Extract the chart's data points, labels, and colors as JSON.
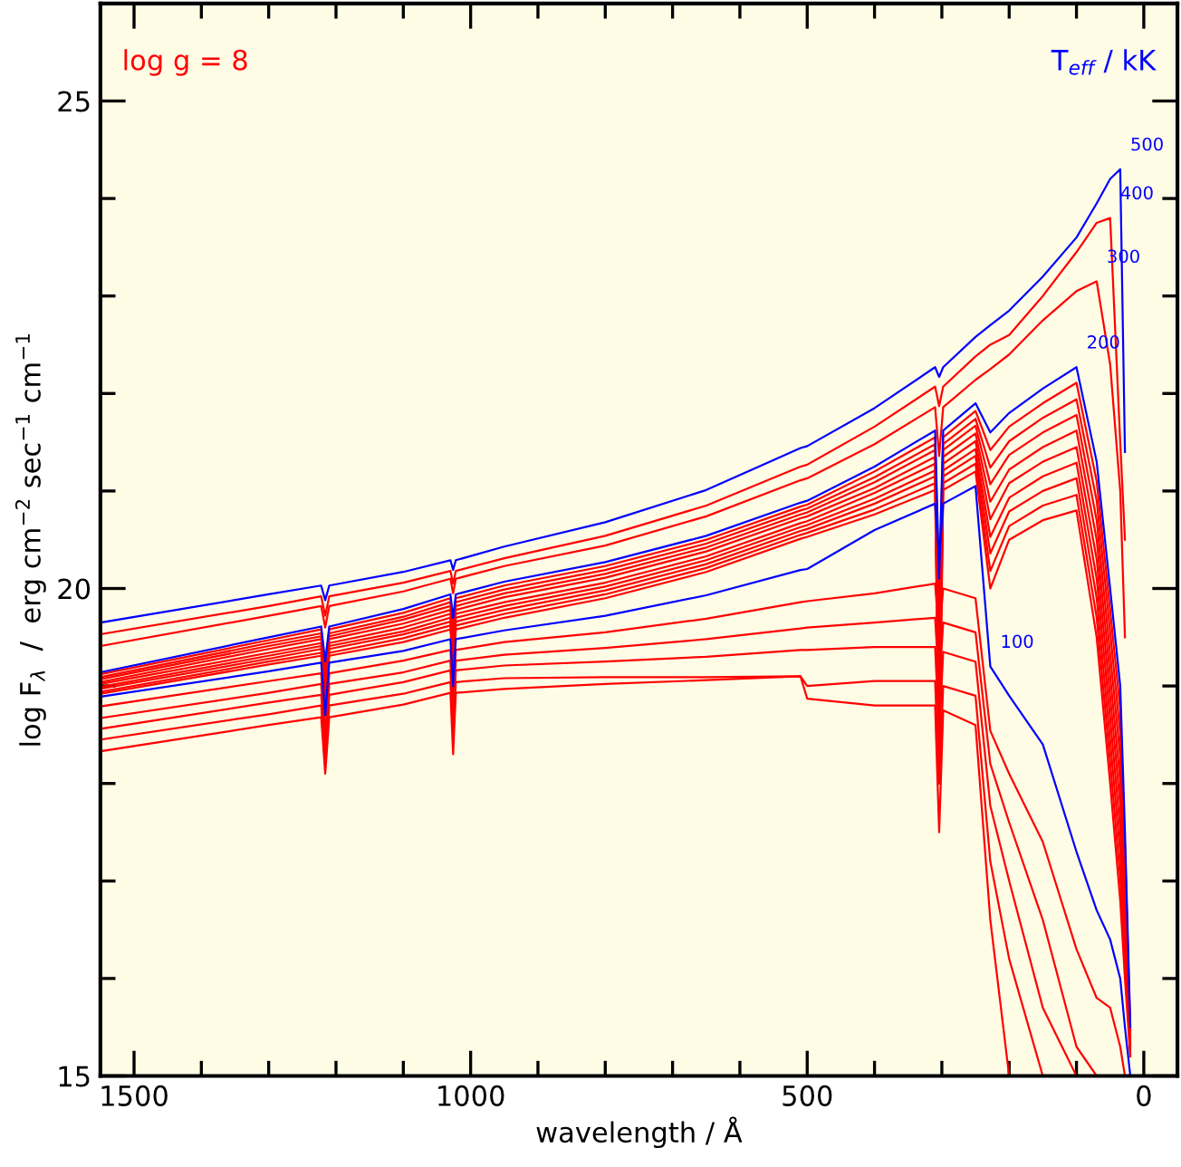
{
  "chart_data": {
    "type": "line",
    "xlabel": "wavelength / Å",
    "ylabel": "log F$_{λ}$  /  erg cm$^{−2}$ sec$^{−1}$ cm$^{−1}$",
    "annotations": [
      "log g = 8",
      "T$_{eff}$ / kK",
      {
        "text": "500",
        "x": 35,
        "y": 24.3
      },
      {
        "text": "400",
        "x": 50,
        "y": 23.8
      },
      {
        "text": "300",
        "x": 70,
        "y": 23.15
      },
      {
        "text": "200",
        "x": 100,
        "y": 22.27
      },
      {
        "text": "100",
        "x": 228,
        "y": 19.2
      }
    ],
    "xlim": [
      1550,
      -50
    ],
    "ylim": [
      15,
      26
    ],
    "xticks": [
      1500,
      {
        "value": 1400,
        "label": null
      },
      {
        "value": 1300,
        "label": null
      },
      {
        "value": 1200,
        "label": null
      },
      {
        "value": 1100,
        "label": null
      },
      1000,
      {
        "value": 900,
        "label": null
      },
      {
        "value": 800,
        "label": null
      },
      {
        "value": 700,
        "label": null
      },
      {
        "value": 600,
        "label": null
      },
      500,
      {
        "value": 400,
        "label": null
      },
      {
        "value": 300,
        "label": null
      },
      {
        "value": 200,
        "label": null
      },
      {
        "value": 100,
        "label": null
      },
      0
    ],
    "yticks": [
      15,
      {
        "value": 16,
        "label": null
      },
      {
        "value": 17,
        "label": null
      },
      {
        "value": 18,
        "label": null
      },
      {
        "value": 19,
        "label": null
      },
      20,
      {
        "value": 21,
        "label": null
      },
      {
        "value": 22,
        "label": null
      },
      {
        "value": 23,
        "label": null
      },
      {
        "value": 24,
        "label": null
      },
      25,
      {
        "value": 26,
        "label": null
      }
    ],
    "line_style": "solid",
    "marker": "none",
    "x": [
      1550,
      1300,
      1222,
      1216,
      1210,
      1100,
      1030,
      1026,
      1022,
      950,
      800,
      650,
      510,
      500,
      400,
      310,
      304,
      298,
      250,
      228,
      200,
      150,
      100,
      70,
      50,
      35,
      28,
      20
    ],
    "series": [
      {
        "color": "#ff0000",
        "values": [
          18.33,
          18.6,
          18.68,
          18.1,
          18.68,
          18.81,
          18.93,
          18.3,
          18.93,
          18.97,
          19.02,
          19.06,
          19.1,
          18.87,
          18.8,
          18.8,
          17.5,
          18.75,
          18.6,
          16.6,
          15.0,
          null,
          null,
          null,
          null,
          null,
          null,
          null
        ]
      },
      {
        "color": "#ff0000",
        "values": [
          18.45,
          18.71,
          18.8,
          18.2,
          18.8,
          18.92,
          19.04,
          18.5,
          19.04,
          19.08,
          19.09,
          19.09,
          19.1,
          19.0,
          19.05,
          19.05,
          18.0,
          19.0,
          18.9,
          17.2,
          16.2,
          15.0,
          null,
          null,
          null,
          null,
          null,
          null
        ]
      },
      {
        "color": "#ff0000",
        "values": [
          18.56,
          18.83,
          18.91,
          18.3,
          18.91,
          19.04,
          19.16,
          18.6,
          19.16,
          19.21,
          19.25,
          19.3,
          19.37,
          19.37,
          19.4,
          19.4,
          18.5,
          19.35,
          19.25,
          17.77,
          17.0,
          15.7,
          15.0,
          null,
          null,
          null,
          null,
          null
        ]
      },
      {
        "color": "#ff0000",
        "values": [
          18.67,
          18.93,
          19.02,
          18.4,
          19.02,
          19.14,
          19.26,
          18.7,
          19.26,
          19.32,
          19.39,
          19.48,
          19.59,
          19.6,
          19.65,
          19.7,
          19.0,
          19.65,
          19.55,
          18.2,
          17.6,
          16.6,
          15.3,
          15.0,
          null,
          null,
          null,
          null
        ]
      },
      {
        "color": "#ff0000",
        "values": [
          18.79,
          19.05,
          19.13,
          18.5,
          19.13,
          19.26,
          19.37,
          18.85,
          19.37,
          19.45,
          19.55,
          19.69,
          19.86,
          19.87,
          19.95,
          20.05,
          19.5,
          20.0,
          19.9,
          18.54,
          18.1,
          17.4,
          16.3,
          15.8,
          15.7,
          15.3,
          15.0,
          null
        ]
      },
      {
        "color": "#ff0000",
        "values": [
          18.92,
          19.22,
          19.31,
          18.8,
          19.31,
          19.45,
          19.58,
          19.2,
          19.58,
          19.7,
          19.9,
          20.17,
          20.51,
          20.53,
          20.76,
          21.01,
          18.0,
          21.01,
          21.2,
          20.0,
          20.5,
          20.7,
          20.8,
          19.5,
          18.0,
          16.8,
          16.0,
          15.2
        ]
      },
      {
        "color": "#ff0000",
        "values": [
          18.94,
          19.25,
          19.34,
          18.85,
          19.34,
          19.49,
          19.62,
          19.26,
          19.62,
          19.74,
          19.94,
          20.21,
          20.55,
          20.57,
          20.81,
          21.08,
          18.23,
          21.08,
          21.28,
          20.18,
          20.64,
          20.85,
          20.96,
          19.7,
          18.22,
          17.04,
          16.17,
          15.23
        ]
      },
      {
        "color": "#ff0000",
        "values": [
          18.97,
          19.28,
          19.38,
          18.9,
          19.38,
          19.53,
          19.66,
          19.31,
          19.66,
          19.78,
          19.98,
          20.25,
          20.59,
          20.61,
          20.87,
          21.15,
          18.47,
          21.15,
          21.36,
          20.36,
          20.79,
          21.0,
          21.13,
          19.9,
          18.44,
          17.29,
          16.33,
          15.27
        ]
      },
      {
        "color": "#ff0000",
        "values": [
          18.99,
          19.31,
          19.41,
          18.95,
          19.41,
          19.56,
          19.7,
          19.37,
          19.7,
          19.82,
          20.02,
          20.29,
          20.63,
          20.65,
          20.92,
          21.21,
          18.7,
          21.21,
          21.43,
          20.53,
          20.93,
          21.15,
          21.29,
          20.1,
          18.67,
          17.53,
          16.5,
          15.3
        ]
      },
      {
        "color": "#ff0000",
        "values": [
          19.02,
          19.34,
          19.44,
          19.0,
          19.44,
          19.6,
          19.74,
          19.42,
          19.74,
          19.86,
          20.06,
          20.33,
          20.67,
          20.69,
          20.98,
          21.28,
          18.93,
          21.28,
          21.51,
          20.71,
          21.08,
          21.3,
          21.45,
          20.3,
          18.89,
          17.78,
          16.67,
          15.33
        ]
      },
      {
        "color": "#ff0000",
        "values": [
          19.04,
          19.38,
          19.48,
          19.05,
          19.48,
          19.64,
          19.78,
          19.48,
          19.78,
          19.91,
          20.11,
          20.38,
          20.72,
          20.74,
          21.03,
          21.35,
          19.17,
          21.35,
          21.59,
          20.89,
          21.22,
          21.45,
          21.62,
          20.5,
          19.11,
          18.02,
          16.83,
          15.37
        ]
      },
      {
        "color": "#ff0000",
        "values": [
          19.07,
          19.41,
          19.51,
          19.1,
          19.51,
          19.68,
          19.82,
          19.53,
          19.82,
          19.95,
          20.15,
          20.42,
          20.76,
          20.78,
          21.09,
          21.42,
          19.4,
          21.42,
          21.67,
          21.07,
          21.37,
          21.6,
          21.78,
          20.7,
          19.33,
          18.27,
          17.0,
          15.4
        ]
      },
      {
        "color": "#ff0000",
        "values": [
          19.09,
          19.44,
          19.54,
          19.15,
          19.54,
          19.71,
          19.86,
          19.59,
          19.86,
          19.99,
          20.19,
          20.46,
          20.8,
          20.82,
          21.14,
          21.48,
          19.63,
          21.48,
          21.74,
          21.24,
          21.51,
          21.75,
          21.94,
          20.9,
          19.56,
          18.51,
          17.17,
          15.43
        ]
      },
      {
        "color": "#ff0000",
        "values": [
          19.12,
          19.47,
          19.58,
          19.2,
          19.58,
          19.75,
          19.9,
          19.64,
          19.9,
          20.03,
          20.23,
          20.5,
          20.84,
          20.86,
          21.2,
          21.55,
          19.87,
          21.55,
          21.82,
          21.42,
          21.66,
          21.9,
          22.11,
          21.1,
          19.78,
          18.76,
          17.33,
          15.47
        ]
      },
      {
        "color": "#ff0000",
        "values": [
          19.41,
          19.72,
          19.82,
          19.6,
          19.82,
          19.97,
          20.1,
          19.95,
          20.1,
          20.23,
          20.44,
          20.74,
          21.11,
          21.13,
          21.48,
          21.86,
          21.36,
          21.86,
          22.14,
          22.25,
          22.4,
          22.75,
          23.05,
          23.15,
          22.3,
          21.0,
          19.5,
          null
        ]
      },
      {
        "color": "#ff0000",
        "values": [
          19.53,
          19.82,
          19.92,
          19.72,
          19.92,
          20.06,
          20.18,
          20.05,
          20.18,
          20.31,
          20.54,
          20.85,
          21.25,
          21.27,
          21.66,
          22.07,
          21.87,
          22.07,
          22.38,
          22.5,
          22.6,
          23.0,
          23.45,
          23.75,
          23.8,
          21.5,
          20.5,
          null
        ]
      },
      {
        "color": "#0000ff",
        "values": [
          18.89,
          19.15,
          19.24,
          18.7,
          19.24,
          19.36,
          19.48,
          19.0,
          19.48,
          19.57,
          19.72,
          19.93,
          20.19,
          20.2,
          20.6,
          20.87,
          20.3,
          20.87,
          21.05,
          19.2,
          18.9,
          18.4,
          17.3,
          16.7,
          16.4,
          16.0,
          15.5,
          15.0
        ]
      },
      {
        "color": "#0000ff",
        "values": [
          19.14,
          19.5,
          19.61,
          19.25,
          19.61,
          19.79,
          19.94,
          19.7,
          19.94,
          20.07,
          20.27,
          20.54,
          20.88,
          20.9,
          21.25,
          21.62,
          20.1,
          21.62,
          21.9,
          21.6,
          21.8,
          22.05,
          22.27,
          21.3,
          20.0,
          19.0,
          17.5,
          15.5
        ]
      },
      {
        "color": "#0000ff",
        "values": [
          19.65,
          19.94,
          20.03,
          19.88,
          20.03,
          20.17,
          20.29,
          20.19,
          20.29,
          20.43,
          20.68,
          21.01,
          21.44,
          21.46,
          21.85,
          22.27,
          22.17,
          22.27,
          22.58,
          22.7,
          22.85,
          23.2,
          23.6,
          23.95,
          24.2,
          24.3,
          21.4,
          null
        ]
      }
    ]
  }
}
